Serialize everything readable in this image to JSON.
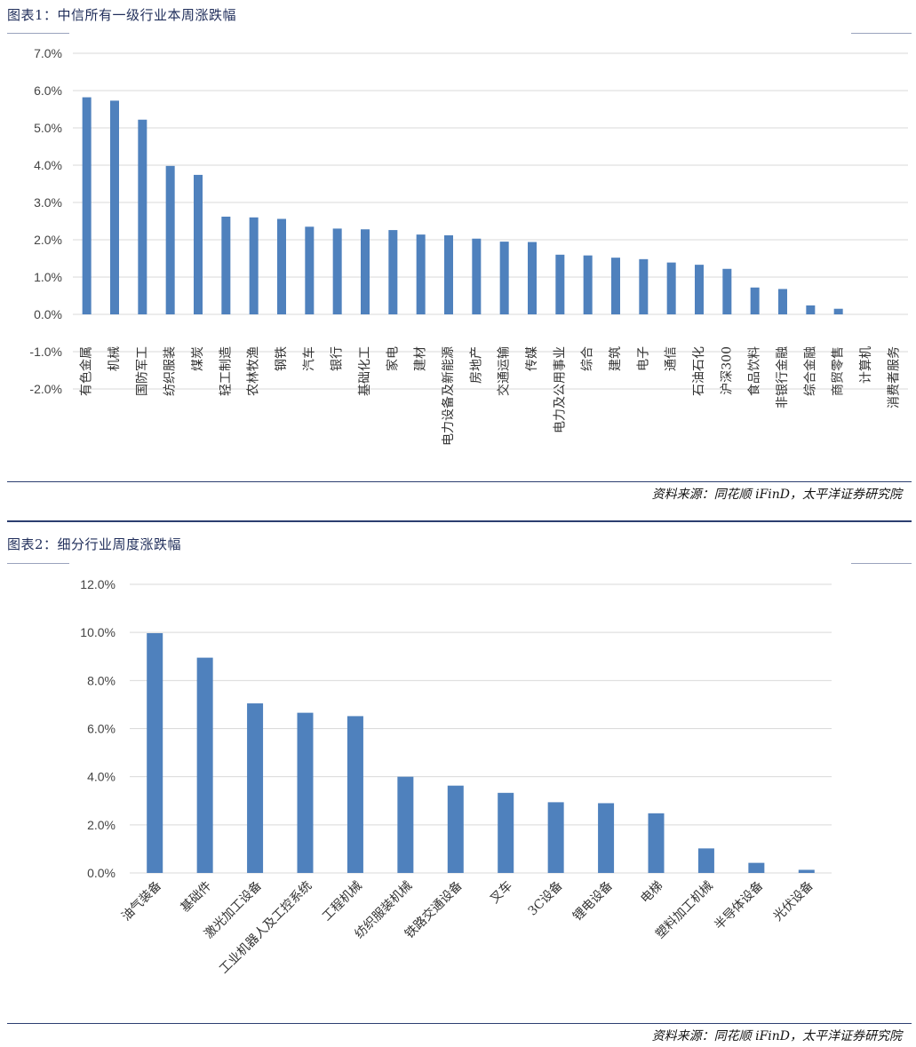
{
  "figure1": {
    "title": "图表1：中信所有一级行业本周涨跌幅",
    "source": "资料来源：同花顺 iFinD，太平洋证券研究院"
  },
  "figure2": {
    "title": "图表2：细分行业周度涨跌幅",
    "source": "资料来源：同花顺 iFinD，太平洋证券研究院"
  },
  "colors": {
    "bar": "#4f81bd",
    "grid": "#d9d9d9",
    "rule": "#2c3e70"
  },
  "chart_data": [
    {
      "type": "bar",
      "title": "中信所有一级行业本周涨跌幅",
      "categories": [
        "有色金属",
        "机械",
        "国防军工",
        "纺织服装",
        "煤炭",
        "轻工制造",
        "农林牧渔",
        "钢铁",
        "汽车",
        "银行",
        "基础化工",
        "家电",
        "建材",
        "电力设备及新能源",
        "房地产",
        "交通运输",
        "传媒",
        "电力及公用事业",
        "综合",
        "建筑",
        "电子",
        "通信",
        "石油石化",
        "沪深300",
        "食品饮料",
        "非银行金融",
        "综合金融",
        "商贸零售",
        "计算机",
        "消费者服务"
      ],
      "values": [
        5.82,
        5.73,
        5.22,
        3.98,
        3.74,
        2.62,
        2.6,
        2.56,
        2.35,
        2.3,
        2.28,
        2.26,
        2.14,
        2.12,
        2.03,
        1.95,
        1.94,
        1.6,
        1.58,
        1.52,
        1.48,
        1.39,
        1.33,
        1.22,
        0.72,
        0.68,
        0.24,
        0.15,
        0.0,
        0.0
      ],
      "yticks": [
        "7.0%",
        "6.0%",
        "5.0%",
        "4.0%",
        "3.0%",
        "2.0%",
        "1.0%",
        "0.0%",
        "-1.0%",
        "-2.0%"
      ],
      "ylim": [
        -2,
        7
      ],
      "unit": "%"
    },
    {
      "type": "bar",
      "title": "细分行业周度涨跌幅",
      "categories": [
        "油气装备",
        "基础件",
        "激光加工设备",
        "工业机器人及工控系统",
        "工程机械",
        "纺织服装机械",
        "铁路交通设备",
        "叉车",
        "3C设备",
        "锂电设备",
        "电梯",
        "塑料加工机械",
        "半导体设备",
        "光伏设备"
      ],
      "values": [
        9.97,
        8.95,
        7.05,
        6.66,
        6.52,
        4.0,
        3.63,
        3.33,
        2.94,
        2.9,
        2.48,
        1.02,
        0.42,
        0.13
      ],
      "yticks": [
        "12.0%",
        "10.0%",
        "8.0%",
        "6.0%",
        "4.0%",
        "2.0%",
        "0.0%"
      ],
      "ylim": [
        0,
        12
      ],
      "unit": "%"
    }
  ]
}
